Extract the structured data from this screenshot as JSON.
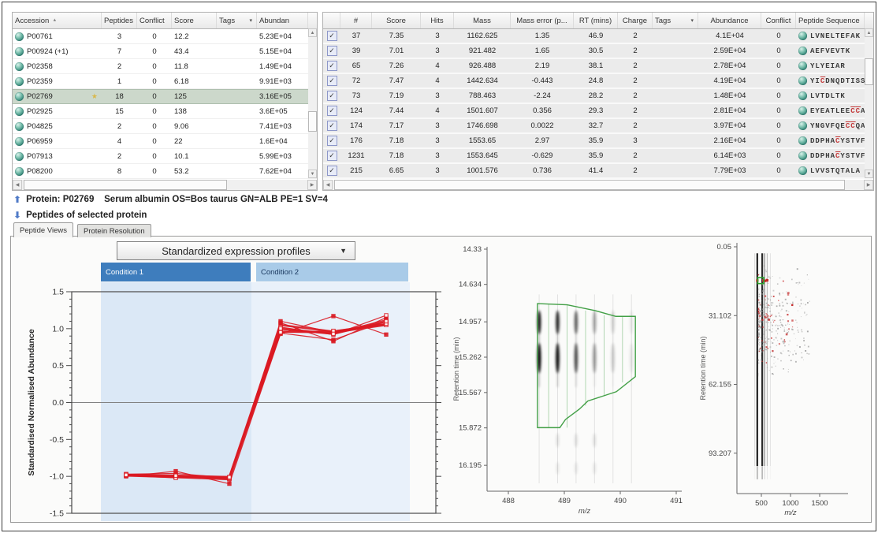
{
  "left_table": {
    "headers": {
      "accession": "Accession",
      "peptides": "Peptides",
      "conflict": "Conflict",
      "score": "Score",
      "tags": "Tags",
      "abundance": "Abundan"
    },
    "rows": [
      {
        "accession": "P00761",
        "peptides": "3",
        "conflict": "0",
        "score": "12.2",
        "tags": "",
        "abundance": "5.23E+04",
        "starred": false,
        "selected": false
      },
      {
        "accession": "P00924 (+1)",
        "peptides": "7",
        "conflict": "0",
        "score": "43.4",
        "tags": "",
        "abundance": "5.15E+04",
        "starred": false,
        "selected": false
      },
      {
        "accession": "P02358",
        "peptides": "2",
        "conflict": "0",
        "score": "11.8",
        "tags": "",
        "abundance": "1.49E+04",
        "starred": false,
        "selected": false
      },
      {
        "accession": "P02359",
        "peptides": "1",
        "conflict": "0",
        "score": "6.18",
        "tags": "",
        "abundance": "9.91E+03",
        "starred": false,
        "selected": false
      },
      {
        "accession": "P02769",
        "peptides": "18",
        "conflict": "0",
        "score": "125",
        "tags": "",
        "abundance": "3.16E+05",
        "starred": true,
        "selected": true
      },
      {
        "accession": "P02925",
        "peptides": "15",
        "conflict": "0",
        "score": "138",
        "tags": "",
        "abundance": "3.6E+05",
        "starred": false,
        "selected": false
      },
      {
        "accession": "P04825",
        "peptides": "2",
        "conflict": "0",
        "score": "9.06",
        "tags": "",
        "abundance": "7.41E+03",
        "starred": false,
        "selected": false
      },
      {
        "accession": "P06959",
        "peptides": "4",
        "conflict": "0",
        "score": "22",
        "tags": "",
        "abundance": "1.6E+04",
        "starred": false,
        "selected": false
      },
      {
        "accession": "P07913",
        "peptides": "2",
        "conflict": "0",
        "score": "10.1",
        "tags": "",
        "abundance": "5.99E+03",
        "starred": false,
        "selected": false
      },
      {
        "accession": "P08200",
        "peptides": "8",
        "conflict": "0",
        "score": "53.2",
        "tags": "",
        "abundance": "7.62E+04",
        "starred": false,
        "selected": false
      }
    ]
  },
  "right_table": {
    "headers": {
      "check": "",
      "num": "#",
      "score": "Score",
      "hits": "Hits",
      "mass": "Mass",
      "mass_error": "Mass error (p...",
      "rt": "RT (mins)",
      "charge": "Charge",
      "tags": "Tags",
      "abundance": "Abundance",
      "conflict": "Conflict",
      "sequence": "Peptide Sequence"
    },
    "rows": [
      {
        "checked": true,
        "num": "37",
        "score": "7.35",
        "hits": "3",
        "mass": "1162.625",
        "mass_error": "1.35",
        "rt": "46.9",
        "charge": "2",
        "tags": "",
        "abundance": "4.1E+04",
        "conflict": "0",
        "sequence": "LVNELTEFAK"
      },
      {
        "checked": true,
        "num": "39",
        "score": "7.01",
        "hits": "3",
        "mass": "921.482",
        "mass_error": "1.65",
        "rt": "30.5",
        "charge": "2",
        "tags": "",
        "abundance": "2.59E+04",
        "conflict": "0",
        "sequence": "AEFVEVTK"
      },
      {
        "checked": true,
        "num": "65",
        "score": "7.26",
        "hits": "4",
        "mass": "926.488",
        "mass_error": "2.19",
        "rt": "38.1",
        "charge": "2",
        "tags": "",
        "abundance": "2.78E+04",
        "conflict": "0",
        "sequence": "YLYEIAR"
      },
      {
        "checked": true,
        "num": "72",
        "score": "7.47",
        "hits": "4",
        "mass": "1442.634",
        "mass_error": "-0.443",
        "rt": "24.8",
        "charge": "2",
        "tags": "",
        "abundance": "4.19E+04",
        "conflict": "0",
        "sequence": "YICDNQDTISS"
      },
      {
        "checked": true,
        "num": "73",
        "score": "7.19",
        "hits": "3",
        "mass": "788.463",
        "mass_error": "-2.24",
        "rt": "28.2",
        "charge": "2",
        "tags": "",
        "abundance": "1.48E+04",
        "conflict": "0",
        "sequence": "LVTDLTK"
      },
      {
        "checked": true,
        "num": "124",
        "score": "7.44",
        "hits": "4",
        "mass": "1501.607",
        "mass_error": "0.356",
        "rt": "29.3",
        "charge": "2",
        "tags": "",
        "abundance": "2.81E+04",
        "conflict": "0",
        "sequence": "EYEATLEECCA"
      },
      {
        "checked": true,
        "num": "174",
        "score": "7.17",
        "hits": "3",
        "mass": "1746.698",
        "mass_error": "0.0022",
        "rt": "32.7",
        "charge": "2",
        "tags": "",
        "abundance": "3.97E+04",
        "conflict": "0",
        "sequence": "YNGVFQECCQA"
      },
      {
        "checked": true,
        "num": "176",
        "score": "7.18",
        "hits": "3",
        "mass": "1553.65",
        "mass_error": "2.97",
        "rt": "35.9",
        "charge": "3",
        "tags": "",
        "abundance": "2.16E+04",
        "conflict": "0",
        "sequence": "DDPHACYSTVF"
      },
      {
        "checked": true,
        "num": "1231",
        "score": "7.18",
        "hits": "3",
        "mass": "1553.645",
        "mass_error": "-0.629",
        "rt": "35.9",
        "charge": "2",
        "tags": "",
        "abundance": "6.14E+03",
        "conflict": "0",
        "sequence": "DDPHACYSTVF"
      },
      {
        "checked": true,
        "num": "215",
        "score": "6.65",
        "hits": "3",
        "mass": "1001.576",
        "mass_error": "0.736",
        "rt": "41.4",
        "charge": "2",
        "tags": "",
        "abundance": "7.79E+03",
        "conflict": "0",
        "sequence": "LVVSTQTALA"
      }
    ]
  },
  "protein_line": {
    "text": "Protein: P02769    Serum albumin OS=Bos taurus GN=ALB PE=1 SV=4"
  },
  "peptides_line": {
    "text": "Peptides of selected protein"
  },
  "tabs": [
    {
      "label": "Peptide Views",
      "active": true
    },
    {
      "label": "Protein Resolution",
      "active": false
    }
  ],
  "chart_data": [
    {
      "id": "standardized-expression-profiles",
      "type": "line",
      "title": "Standardized expression profiles",
      "ylabel": "Standardised Normalised Abundance",
      "ylim": [
        -1.5,
        1.5
      ],
      "yticks": [
        1.5,
        1.0,
        0.5,
        0.0,
        -0.5,
        -1.0,
        -1.5
      ],
      "ytick_labels": [
        "1.5",
        "1.0",
        "0.5",
        "0.0",
        "-0.5",
        "-1.0",
        "-1.5"
      ],
      "minor_tick_step": 0.1,
      "grid": false,
      "line_color": "#da1a22",
      "conditions": [
        {
          "label": "Condition 1",
          "runs": 3,
          "bar_color": "#3e7dbd",
          "band_color": "#dbe8f6",
          "text_color": "#ffffff"
        },
        {
          "label": "Condition 2",
          "runs": 3,
          "bar_color": "#a9cbe8",
          "band_color": "#e9f1fa",
          "text_color": "#17365d"
        }
      ],
      "series": [
        {
          "values": [
            -0.97,
            -0.96,
            -1.02,
            1.1,
            0.95,
            1.09
          ]
        },
        {
          "values": [
            -0.98,
            -1.0,
            -1.01,
            1.05,
            0.96,
            1.06
          ]
        },
        {
          "values": [
            -0.99,
            -1.01,
            -1.03,
            0.99,
            0.94,
            1.12
          ]
        },
        {
          "values": [
            -0.98,
            -0.99,
            -1.02,
            0.94,
            0.85,
            1.1
          ]
        },
        {
          "values": [
            -1.0,
            -0.93,
            -1.1,
            0.93,
            1.17,
            0.92
          ]
        },
        {
          "values": [
            -0.98,
            -1.0,
            -1.02,
            1.08,
            0.83,
            1.15
          ]
        },
        {
          "values": [
            -0.99,
            -1.01,
            -1.04,
            0.96,
            0.95,
            1.05
          ]
        },
        {
          "values": [
            -0.97,
            -1.0,
            -1.03,
            1.02,
            0.92,
            1.18
          ]
        },
        {
          "values": [
            -0.99,
            -1.02,
            -1.02,
            0.95,
            0.97,
            1.07
          ]
        },
        {
          "values": [
            -0.98,
            -0.99,
            -1.01,
            1.0,
            0.93,
            1.1
          ]
        }
      ]
    },
    {
      "id": "peptide-ion-map",
      "type": "heatmap",
      "xlabel": "m/z",
      "ylabel": "Retention time (min)",
      "xticks": [
        488,
        489,
        490,
        491
      ],
      "yticks": [
        14.33,
        14.634,
        14.957,
        15.262,
        15.567,
        15.872,
        16.195
      ],
      "ytick_labels": [
        "14.33",
        "14.634",
        "14.957",
        "15.262",
        "15.567",
        "15.872",
        "16.195"
      ],
      "xlim": [
        487.62,
        491.1
      ],
      "ylim": [
        14.31,
        16.42
      ],
      "outline_color": "#43a047",
      "isotopes": [
        {
          "mz": 488.55,
          "intensity": 1.0
        },
        {
          "mz": 488.88,
          "intensity": 0.9
        },
        {
          "mz": 489.21,
          "intensity": 0.62
        },
        {
          "mz": 489.54,
          "intensity": 0.34
        },
        {
          "mz": 489.87,
          "intensity": 0.16
        },
        {
          "mz": 490.2,
          "intensity": 0.08
        }
      ],
      "blob_rts": [
        14.96,
        15.27
      ],
      "tail_rts": [
        15.98,
        16.22
      ],
      "selection_polygon": [
        [
          488.52,
          14.8
        ],
        [
          489.05,
          14.81
        ],
        [
          489.55,
          14.86
        ],
        [
          489.92,
          14.91
        ],
        [
          490.27,
          14.91
        ],
        [
          490.27,
          15.43
        ],
        [
          489.93,
          15.56
        ],
        [
          489.42,
          15.64
        ],
        [
          489.27,
          15.71
        ],
        [
          489.02,
          15.8
        ],
        [
          488.92,
          15.87
        ],
        [
          488.52,
          15.87
        ]
      ],
      "inner_dividers": [
        [
          488.72,
          14.8,
          15.87
        ],
        [
          489.05,
          14.81,
          15.87
        ],
        [
          489.38,
          14.86,
          15.68
        ],
        [
          489.71,
          14.9,
          15.6
        ],
        [
          490.04,
          14.91,
          15.48
        ]
      ]
    },
    {
      "id": "run-overview-map",
      "type": "scatter",
      "xlabel": "m/z",
      "ylabel": "Retention time (min)",
      "xticks": [
        500,
        1000,
        1500
      ],
      "yticks": [
        0.05,
        31.102,
        62.155,
        93.207
      ],
      "ytick_labels": [
        "0.05",
        "31.102",
        "62.155",
        "93.207"
      ],
      "xlim": [
        80,
        1990
      ],
      "ylim": [
        0,
        110
      ],
      "streaks": [
        {
          "mz": 430,
          "w": 2.2,
          "color": "#151515",
          "opacity": 0.95
        },
        {
          "mz": 515,
          "w": 2.2,
          "color": "#151515",
          "opacity": 0.9
        },
        {
          "mz": 555,
          "w": 1.2,
          "color": "#555555",
          "opacity": 0.7
        },
        {
          "mz": 600,
          "w": 1.0,
          "color": "#777777",
          "opacity": 0.5
        },
        {
          "mz": 385,
          "w": 0.8,
          "color": "#999999",
          "opacity": 0.4
        },
        {
          "mz": 655,
          "w": 0.8,
          "color": "#aaaaaa",
          "opacity": 0.35
        }
      ],
      "selected_feature": {
        "mz": 490,
        "rt": 15.3,
        "marker": "green-square",
        "color": "#2da12d"
      },
      "related_features": [
        {
          "mz": 430,
          "rt": 15.3
        },
        {
          "mz": 535,
          "rt": 15.3
        },
        {
          "mz": 565,
          "rt": 15.4
        },
        {
          "mz": 600,
          "rt": 15.2
        }
      ],
      "related_color": "#c62828",
      "cloud": {
        "gray_count": 330,
        "red_count": 55,
        "mz_range": [
          440,
          1320
        ],
        "rt_range": [
          8,
          62
        ],
        "gray_color": "#8a8a8a",
        "red_color": "#c62828"
      }
    }
  ]
}
